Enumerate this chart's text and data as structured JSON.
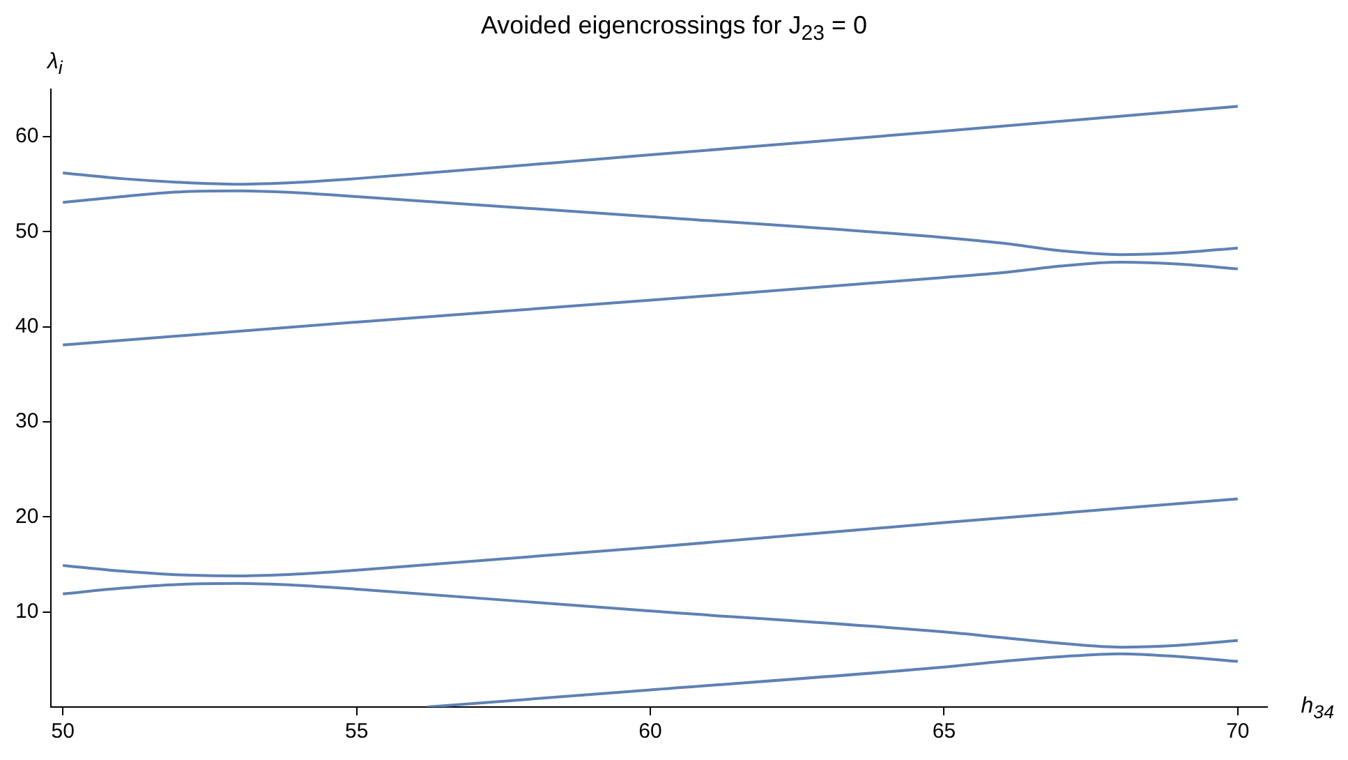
{
  "chart_data": {
    "type": "line",
    "title": "Avoided eigencrossings for J$_{23}$ = 0",
    "xlabel": "h$_{34}$",
    "ylabel": "λ$_{i}$",
    "xlim": [
      49.8,
      70.5
    ],
    "ylim": [
      0,
      65
    ],
    "xticks": [
      50,
      55,
      60,
      65,
      70
    ],
    "yticks": [
      10,
      20,
      30,
      40,
      50,
      60
    ],
    "grid": false,
    "legend": false,
    "marker": "none",
    "line_style": "solid",
    "series": [
      {
        "color": "#5e81b5",
        "x": [
          50,
          51,
          52,
          53,
          54,
          55,
          60,
          65,
          70
        ],
        "values": [
          56.2,
          55.6,
          55.2,
          55.0,
          55.2,
          55.6,
          58.1,
          60.6,
          63.2
        ]
      },
      {
        "color": "#5e81b5",
        "x": [
          50,
          51,
          52,
          53,
          54,
          55,
          60,
          65,
          66,
          67,
          68,
          69,
          70
        ],
        "values": [
          53.1,
          53.7,
          54.2,
          54.3,
          54.1,
          53.7,
          51.6,
          49.4,
          48.8,
          48.0,
          47.6,
          47.8,
          48.3
        ]
      },
      {
        "color": "#5e81b5",
        "x": [
          50,
          55,
          60,
          65,
          66,
          67,
          68,
          69,
          70
        ],
        "values": [
          38.1,
          40.5,
          42.8,
          45.2,
          45.7,
          46.4,
          46.8,
          46.6,
          46.1
        ]
      },
      {
        "color": "#5e81b5",
        "x": [
          50,
          51,
          52,
          53,
          54,
          55,
          60,
          65,
          70
        ],
        "values": [
          14.9,
          14.3,
          13.9,
          13.8,
          14.0,
          14.4,
          16.8,
          19.4,
          21.9
        ]
      },
      {
        "color": "#5e81b5",
        "x": [
          50,
          51,
          52,
          53,
          54,
          55,
          60,
          65,
          66,
          67,
          68,
          69,
          70
        ],
        "values": [
          11.9,
          12.5,
          12.9,
          13.0,
          12.8,
          12.4,
          10.1,
          7.9,
          7.3,
          6.7,
          6.3,
          6.5,
          7.0
        ]
      },
      {
        "color": "#5e81b5",
        "x": [
          56.2,
          60,
          65,
          66,
          67,
          68,
          69,
          70
        ],
        "values": [
          0,
          1.8,
          4.2,
          4.8,
          5.3,
          5.6,
          5.3,
          4.8
        ]
      }
    ]
  }
}
